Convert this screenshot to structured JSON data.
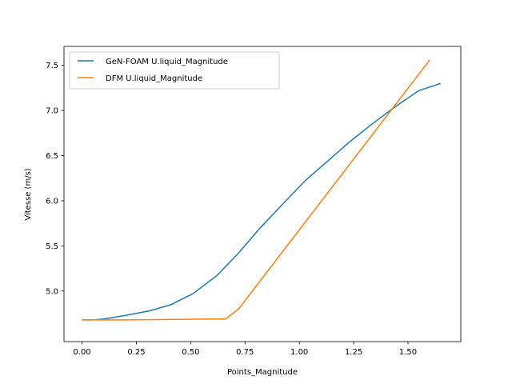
{
  "chart_data": {
    "type": "line",
    "title": "",
    "xlabel": "Points_Magnitude",
    "ylabel": "Vitesse (m/s)",
    "xlim": [
      -0.083,
      1.743
    ],
    "ylim": [
      4.44,
      7.71
    ],
    "xticks": [
      0.0,
      0.25,
      0.5,
      0.75,
      1.0,
      1.25,
      1.5
    ],
    "xtick_labels": [
      "0.00",
      "0.25",
      "0.50",
      "0.75",
      "1.00",
      "1.25",
      "1.50"
    ],
    "yticks": [
      5.0,
      5.5,
      6.0,
      6.5,
      7.0,
      7.5
    ],
    "ytick_labels": [
      "5.0",
      "5.5",
      "6.0",
      "6.5",
      "7.0",
      "7.5"
    ],
    "grid": false,
    "legend_position": "upper-left",
    "series": [
      {
        "name": "GeN-FOAM U.liquid_Magnitude",
        "color": "#1f77b4",
        "x": [
          0.0,
          0.05,
          0.1,
          0.2,
          0.31,
          0.41,
          0.51,
          0.62,
          0.72,
          0.82,
          0.93,
          1.03,
          1.14,
          1.24,
          1.34,
          1.44,
          1.55,
          1.65
        ],
        "y": [
          4.68,
          4.68,
          4.69,
          4.73,
          4.78,
          4.85,
          4.97,
          5.17,
          5.42,
          5.7,
          5.98,
          6.23,
          6.46,
          6.67,
          6.86,
          7.04,
          7.22,
          7.3
        ]
      },
      {
        "name": "DFM U.liquid_Magnitude",
        "color": "#ff7f0e",
        "x": [
          0.0,
          0.2,
          0.4,
          0.6,
          0.66,
          0.72,
          1.6
        ],
        "y": [
          4.68,
          4.68,
          4.685,
          4.69,
          4.69,
          4.8,
          7.56
        ]
      }
    ]
  }
}
